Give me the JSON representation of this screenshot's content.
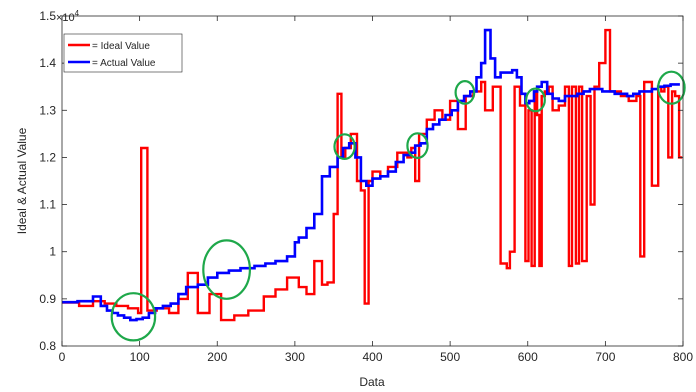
{
  "chart_data": {
    "type": "line",
    "xlabel": "Data",
    "ylabel": "Ideal & Actual Value",
    "xlim": [
      0,
      800
    ],
    "ylim": [
      0.8,
      1.5
    ],
    "y_exponent_label": "×10",
    "y_exponent_power": "4",
    "x_ticks": [
      0,
      100,
      200,
      300,
      400,
      500,
      600,
      700,
      800
    ],
    "y_ticks": [
      0.8,
      0.9,
      1.0,
      1.1,
      1.2,
      1.3,
      1.4,
      1.5
    ],
    "x_tick_labels": [
      "0",
      "100",
      "200",
      "300",
      "400",
      "500",
      "600",
      "700",
      "800"
    ],
    "y_tick_labels": [
      "0.8",
      "0.9",
      "1",
      "1.1",
      "1.2",
      "1.3",
      "1.4",
      "1.5"
    ],
    "grid": false,
    "legend_position": "top-left",
    "series": [
      {
        "name": "= Ideal Value",
        "color": "#ff0000",
        "x": [
          0,
          22,
          40,
          55,
          70,
          85,
          98,
          102,
          110,
          122,
          138,
          150,
          162,
          175,
          190,
          205,
          222,
          240,
          260,
          275,
          290,
          305,
          315,
          325,
          335,
          342,
          350,
          355,
          360,
          365,
          372,
          380,
          385,
          390,
          395,
          400,
          410,
          420,
          432,
          445,
          450,
          455,
          460,
          470,
          480,
          490,
          500,
          510,
          520,
          530,
          540,
          545,
          555,
          565,
          573,
          577,
          583,
          590,
          597,
          601,
          605,
          609,
          612,
          615,
          618,
          622,
          627,
          632,
          640,
          648,
          653,
          657,
          662,
          666,
          670,
          676,
          681,
          686,
          692,
          700,
          706,
          712,
          720,
          730,
          740,
          745,
          750,
          760,
          768,
          772,
          776,
          781,
          786,
          790,
          795
        ],
        "y": [
          0.892,
          0.885,
          0.895,
          0.89,
          0.885,
          0.88,
          0.87,
          1.22,
          0.875,
          0.88,
          0.87,
          0.9,
          0.955,
          0.87,
          0.91,
          0.855,
          0.865,
          0.875,
          0.905,
          0.92,
          0.945,
          0.925,
          0.91,
          0.98,
          0.93,
          0.935,
          1.08,
          1.335,
          1.2,
          1.22,
          1.25,
          1.15,
          1.13,
          0.89,
          1.15,
          1.17,
          1.16,
          1.18,
          1.21,
          1.2,
          1.22,
          1.15,
          1.25,
          1.28,
          1.3,
          1.28,
          1.32,
          1.26,
          1.33,
          1.34,
          1.36,
          1.3,
          1.35,
          0.975,
          0.965,
          1.0,
          1.35,
          1.31,
          0.98,
          1.3,
          0.97,
          1.34,
          1.29,
          0.97,
          1.33,
          1.34,
          1.35,
          1.3,
          1.31,
          1.35,
          0.97,
          1.35,
          0.975,
          1.35,
          0.98,
          1.33,
          1.1,
          1.35,
          1.4,
          1.47,
          1.34,
          1.34,
          1.33,
          1.32,
          1.33,
          0.99,
          1.36,
          1.14,
          1.35,
          1.34,
          1.35,
          1.2,
          1.34,
          1.33,
          1.2
        ]
      },
      {
        "name": "= Actual Value",
        "color": "#0000ff",
        "x": [
          0,
          20,
          40,
          50,
          58,
          65,
          72,
          80,
          88,
          96,
          104,
          112,
          120,
          130,
          140,
          150,
          160,
          175,
          188,
          200,
          215,
          230,
          248,
          262,
          275,
          290,
          300,
          305,
          315,
          325,
          335,
          345,
          355,
          362,
          370,
          378,
          385,
          392,
          400,
          410,
          420,
          430,
          440,
          448,
          455,
          462,
          470,
          478,
          486,
          494,
          502,
          510,
          518,
          526,
          534,
          540,
          545,
          552,
          558,
          565,
          572,
          580,
          586,
          592,
          597,
          602,
          608,
          612,
          618,
          625,
          632,
          640,
          648,
          656,
          664,
          672,
          680,
          688,
          696,
          704,
          712,
          720,
          728,
          736,
          744,
          752,
          760,
          768,
          776,
          784,
          792
        ],
        "y": [
          0.893,
          0.895,
          0.905,
          0.885,
          0.875,
          0.87,
          0.865,
          0.86,
          0.855,
          0.857,
          0.86,
          0.87,
          0.88,
          0.885,
          0.89,
          0.91,
          0.925,
          0.93,
          0.945,
          0.955,
          0.96,
          0.965,
          0.97,
          0.975,
          0.98,
          0.99,
          1.02,
          1.03,
          1.05,
          1.08,
          1.16,
          1.18,
          1.2,
          1.22,
          1.23,
          1.2,
          1.15,
          1.14,
          1.155,
          1.16,
          1.17,
          1.19,
          1.205,
          1.21,
          1.225,
          1.23,
          1.26,
          1.27,
          1.28,
          1.29,
          1.3,
          1.32,
          1.33,
          1.34,
          1.37,
          1.4,
          1.47,
          1.41,
          1.37,
          1.38,
          1.38,
          1.385,
          1.37,
          1.335,
          1.315,
          1.32,
          1.34,
          1.35,
          1.36,
          1.335,
          1.325,
          1.32,
          1.33,
          1.33,
          1.335,
          1.34,
          1.345,
          1.345,
          1.34,
          1.34,
          1.335,
          1.335,
          1.33,
          1.335,
          1.34,
          1.34,
          1.345,
          1.35,
          1.352,
          1.355,
          1.355
        ]
      }
    ],
    "annotations": [
      {
        "shape": "circle",
        "color": "#1ea84a",
        "x": 92,
        "y": 0.862,
        "rx_data": 28,
        "ry_data": 0.05
      },
      {
        "shape": "circle",
        "color": "#1ea84a",
        "x": 212,
        "y": 0.962,
        "rx_data": 30,
        "ry_data": 0.062
      },
      {
        "shape": "circle",
        "color": "#1ea84a",
        "x": 364,
        "y": 1.223,
        "rx_data": 13,
        "ry_data": 0.026
      },
      {
        "shape": "circle",
        "color": "#1ea84a",
        "x": 458,
        "y": 1.225,
        "rx_data": 13,
        "ry_data": 0.026
      },
      {
        "shape": "circle",
        "color": "#1ea84a",
        "x": 519,
        "y": 1.338,
        "rx_data": 12,
        "ry_data": 0.024
      },
      {
        "shape": "circle",
        "color": "#1ea84a",
        "x": 610,
        "y": 1.322,
        "rx_data": 12,
        "ry_data": 0.024
      },
      {
        "shape": "circle",
        "color": "#1ea84a",
        "x": 785,
        "y": 1.348,
        "rx_data": 17,
        "ry_data": 0.034
      }
    ]
  }
}
